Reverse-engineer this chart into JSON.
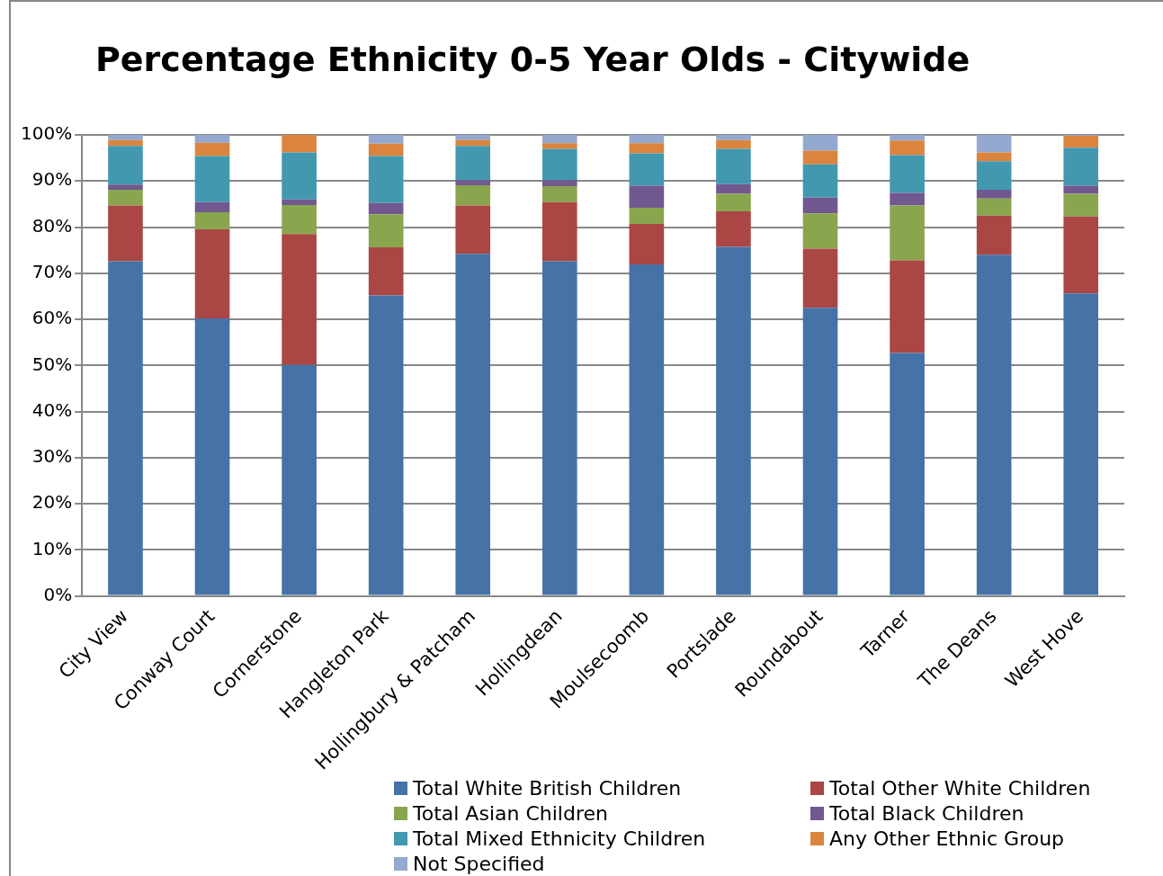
{
  "chart_data": {
    "type": "bar",
    "title": "Percentage Ethnicity 0-5 Year Olds - Citywide",
    "stacked": true,
    "grid": "y",
    "legend": "bottom",
    "categories": [
      "City View",
      "Conway Court",
      "Cornerstone",
      "Hangleton Park",
      "Hollingbury & Patcham",
      "Hollingdean",
      "Moulsecoomb",
      "Portslade",
      "Roundabout",
      "Tarner",
      "The Deans",
      "West Hove"
    ],
    "ylim": [
      0,
      100
    ],
    "yticks": [
      {
        "value": 0,
        "label": "0%"
      },
      {
        "value": 10,
        "label": "10%"
      },
      {
        "value": 20,
        "label": "20%"
      },
      {
        "value": 30,
        "label": "30%"
      },
      {
        "value": 40,
        "label": "40%"
      },
      {
        "value": 50,
        "label": "50%"
      },
      {
        "value": 60,
        "label": "60%"
      },
      {
        "value": 70,
        "label": "70%"
      },
      {
        "value": 80,
        "label": "80%"
      },
      {
        "value": 90,
        "label": "90%"
      },
      {
        "value": 100,
        "label": "100%"
      }
    ],
    "series": [
      {
        "name": "Total White British Children",
        "color": "#4572a7",
        "values": [
          72.6,
          60.2,
          50.1,
          65.2,
          74.2,
          72.6,
          71.9,
          75.7,
          62.5,
          52.7,
          74.0,
          65.6
        ]
      },
      {
        "name": "Total Other White Children",
        "color": "#aa4643",
        "values": [
          12.1,
          19.3,
          28.4,
          10.4,
          10.5,
          12.8,
          8.8,
          7.7,
          12.8,
          20.1,
          8.5,
          16.7
        ]
      },
      {
        "name": "Total Asian Children",
        "color": "#89a54e",
        "values": [
          3.4,
          3.7,
          6.3,
          7.2,
          4.4,
          3.5,
          3.5,
          3.8,
          7.7,
          11.9,
          3.7,
          4.9
        ]
      },
      {
        "name": "Total Black Children",
        "color": "#71588f",
        "values": [
          1.1,
          2.2,
          1.2,
          2.4,
          1.1,
          1.3,
          4.8,
          2.1,
          3.4,
          2.7,
          1.9,
          1.8
        ]
      },
      {
        "name": "Total Mixed Ethnicity Children",
        "color": "#4198af",
        "values": [
          8.4,
          10.0,
          10.2,
          10.2,
          7.4,
          6.8,
          7.0,
          7.7,
          7.2,
          8.2,
          6.2,
          8.2
        ]
      },
      {
        "name": "Any Other Ethnic Group",
        "color": "#db843d",
        "values": [
          1.3,
          2.9,
          3.8,
          2.7,
          1.3,
          1.2,
          2.2,
          1.9,
          3.0,
          3.2,
          1.9,
          2.6
        ]
      },
      {
        "name": "Not Specified",
        "color": "#93a9cf",
        "values": [
          1.1,
          1.7,
          0,
          1.9,
          1.1,
          1.8,
          1.8,
          1.1,
          3.4,
          1.2,
          3.8,
          0.2
        ]
      }
    ]
  }
}
